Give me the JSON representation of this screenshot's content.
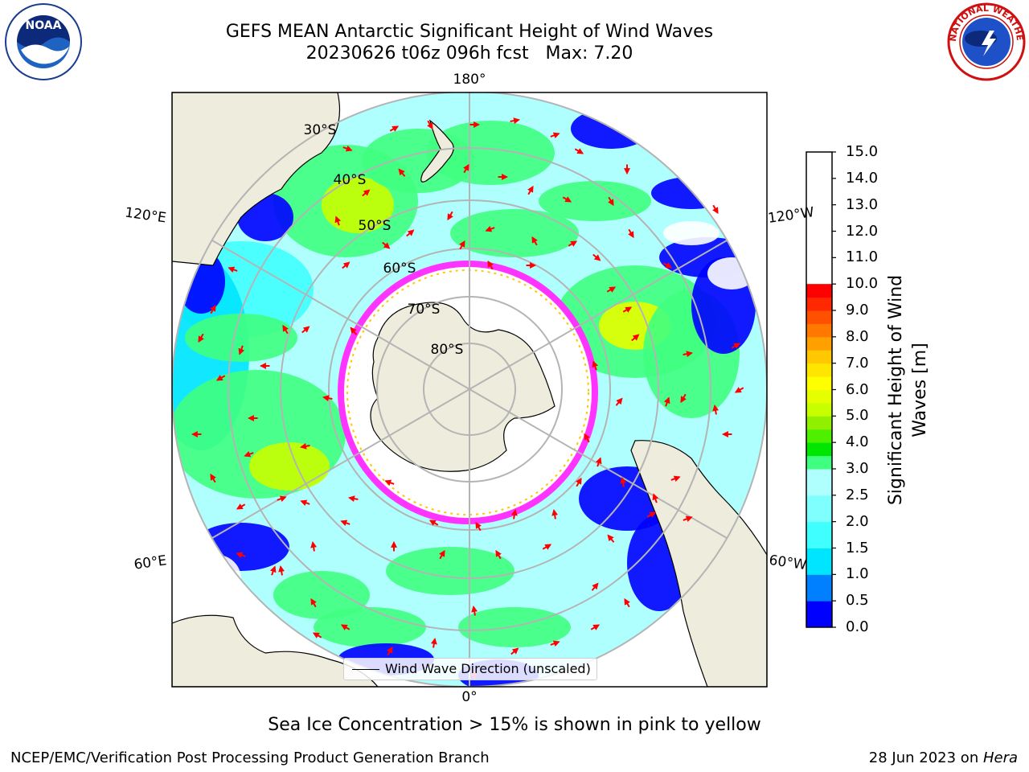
{
  "header": {
    "title": "GEFS MEAN Antarctic Significant Height of Wind Waves",
    "subtitle": "20230626 t06z 096h fcst   Max: 7.20"
  },
  "logos": {
    "left": {
      "icon": "noaa-logo",
      "text": "NOAA"
    },
    "right": {
      "icon": "nws-logo",
      "ring_text": "NATIONAL WEATHER SERVICE"
    }
  },
  "map": {
    "projection": "south-polar-stereographic",
    "meridian_labels": [
      "180°",
      "120°E",
      "120°W",
      "60°E",
      "60°W",
      "0°"
    ],
    "parallel_labels": [
      "30°S",
      "40°S",
      "50°S",
      "60°S",
      "70°S",
      "80°S"
    ],
    "colors": {
      "land": "#eeecdc",
      "ice_interior": "#ffffff",
      "arrow": "#ff0000",
      "ice_edge": "#ff33ff"
    }
  },
  "legend": {
    "label": "Wind Wave Direction (unscaled)"
  },
  "colorbar": {
    "label_line1": "Significant Height of Wind",
    "label_line2": "Waves [m]",
    "ticks": [
      "0.0",
      "0.5",
      "1.0",
      "1.5",
      "2.0",
      "2.5",
      "3.0",
      "3.5",
      "4.0",
      "4.5",
      "5.0",
      "5.5",
      "6.0",
      "6.5",
      "7.0",
      "7.5",
      "8.0",
      "8.5",
      "9.0",
      "9.5",
      "10.0",
      "10.5",
      "11.0",
      "11.5",
      "12.0",
      "12.5",
      "13.0",
      "13.5",
      "14.0",
      "14.5",
      "15.0"
    ],
    "tick_labels": [
      "0.0",
      "0.5",
      "1.0",
      "1.5",
      "2.0",
      "2.5",
      "3.0",
      "4.0",
      "5.0",
      "6.0",
      "7.0",
      "8.0",
      "9.0",
      "10.0",
      "11.0",
      "12.0",
      "13.0",
      "14.0",
      "15.0"
    ],
    "colors": [
      "#0000ff",
      "#0080ff",
      "#00e5ff",
      "#40ffff",
      "#80ffff",
      "#b0ffff",
      "#40ff80",
      "#00e600",
      "#4ef000",
      "#90f000",
      "#c8ff00",
      "#e6ff00",
      "#ffff00",
      "#ffe600",
      "#ffc800",
      "#ffa000",
      "#ff7800",
      "#ff5000",
      "#ff2800",
      "#ff0000"
    ]
  },
  "footer": {
    "ice_note": "Sea Ice Concentration > 15% is shown in pink to yellow",
    "left": "NCEP/EMC/Verification Post Processing Product Generation Branch",
    "right_prefix": "28 Jun 2023 on ",
    "right_host": "Hera"
  }
}
